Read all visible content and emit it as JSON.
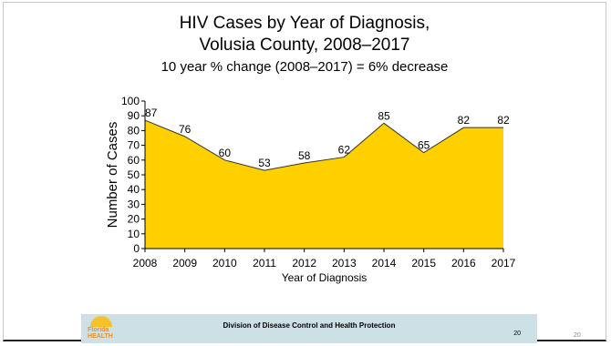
{
  "title_line1": "HIV Cases by Year of Diagnosis,",
  "title_line2": "Volusia County, 2008–2017",
  "subtitle": "10 year % change (2008–2017) = 6% decrease",
  "chart_data": {
    "type": "area",
    "x": [
      "2008",
      "2009",
      "2010",
      "2011",
      "2012",
      "2013",
      "2014",
      "2015",
      "2016",
      "2017"
    ],
    "values": [
      87,
      76,
      60,
      53,
      58,
      62,
      85,
      65,
      82,
      82
    ],
    "xlabel": "Year of Diagnosis",
    "ylabel": "Number of Cases",
    "ylim": [
      0,
      100
    ],
    "yticks": [
      0,
      10,
      20,
      30,
      40,
      50,
      60,
      70,
      80,
      90,
      100
    ],
    "fill_color": "#ffd000",
    "line_color": "#333333",
    "data_labels": true,
    "grid": false,
    "legend": "none"
  },
  "footer": {
    "division": "Division of Disease Control and Health Protection",
    "page_number": "20",
    "logo_text_line1": "Florida",
    "logo_text_line2": "HEALTH"
  },
  "slide_number": "20"
}
